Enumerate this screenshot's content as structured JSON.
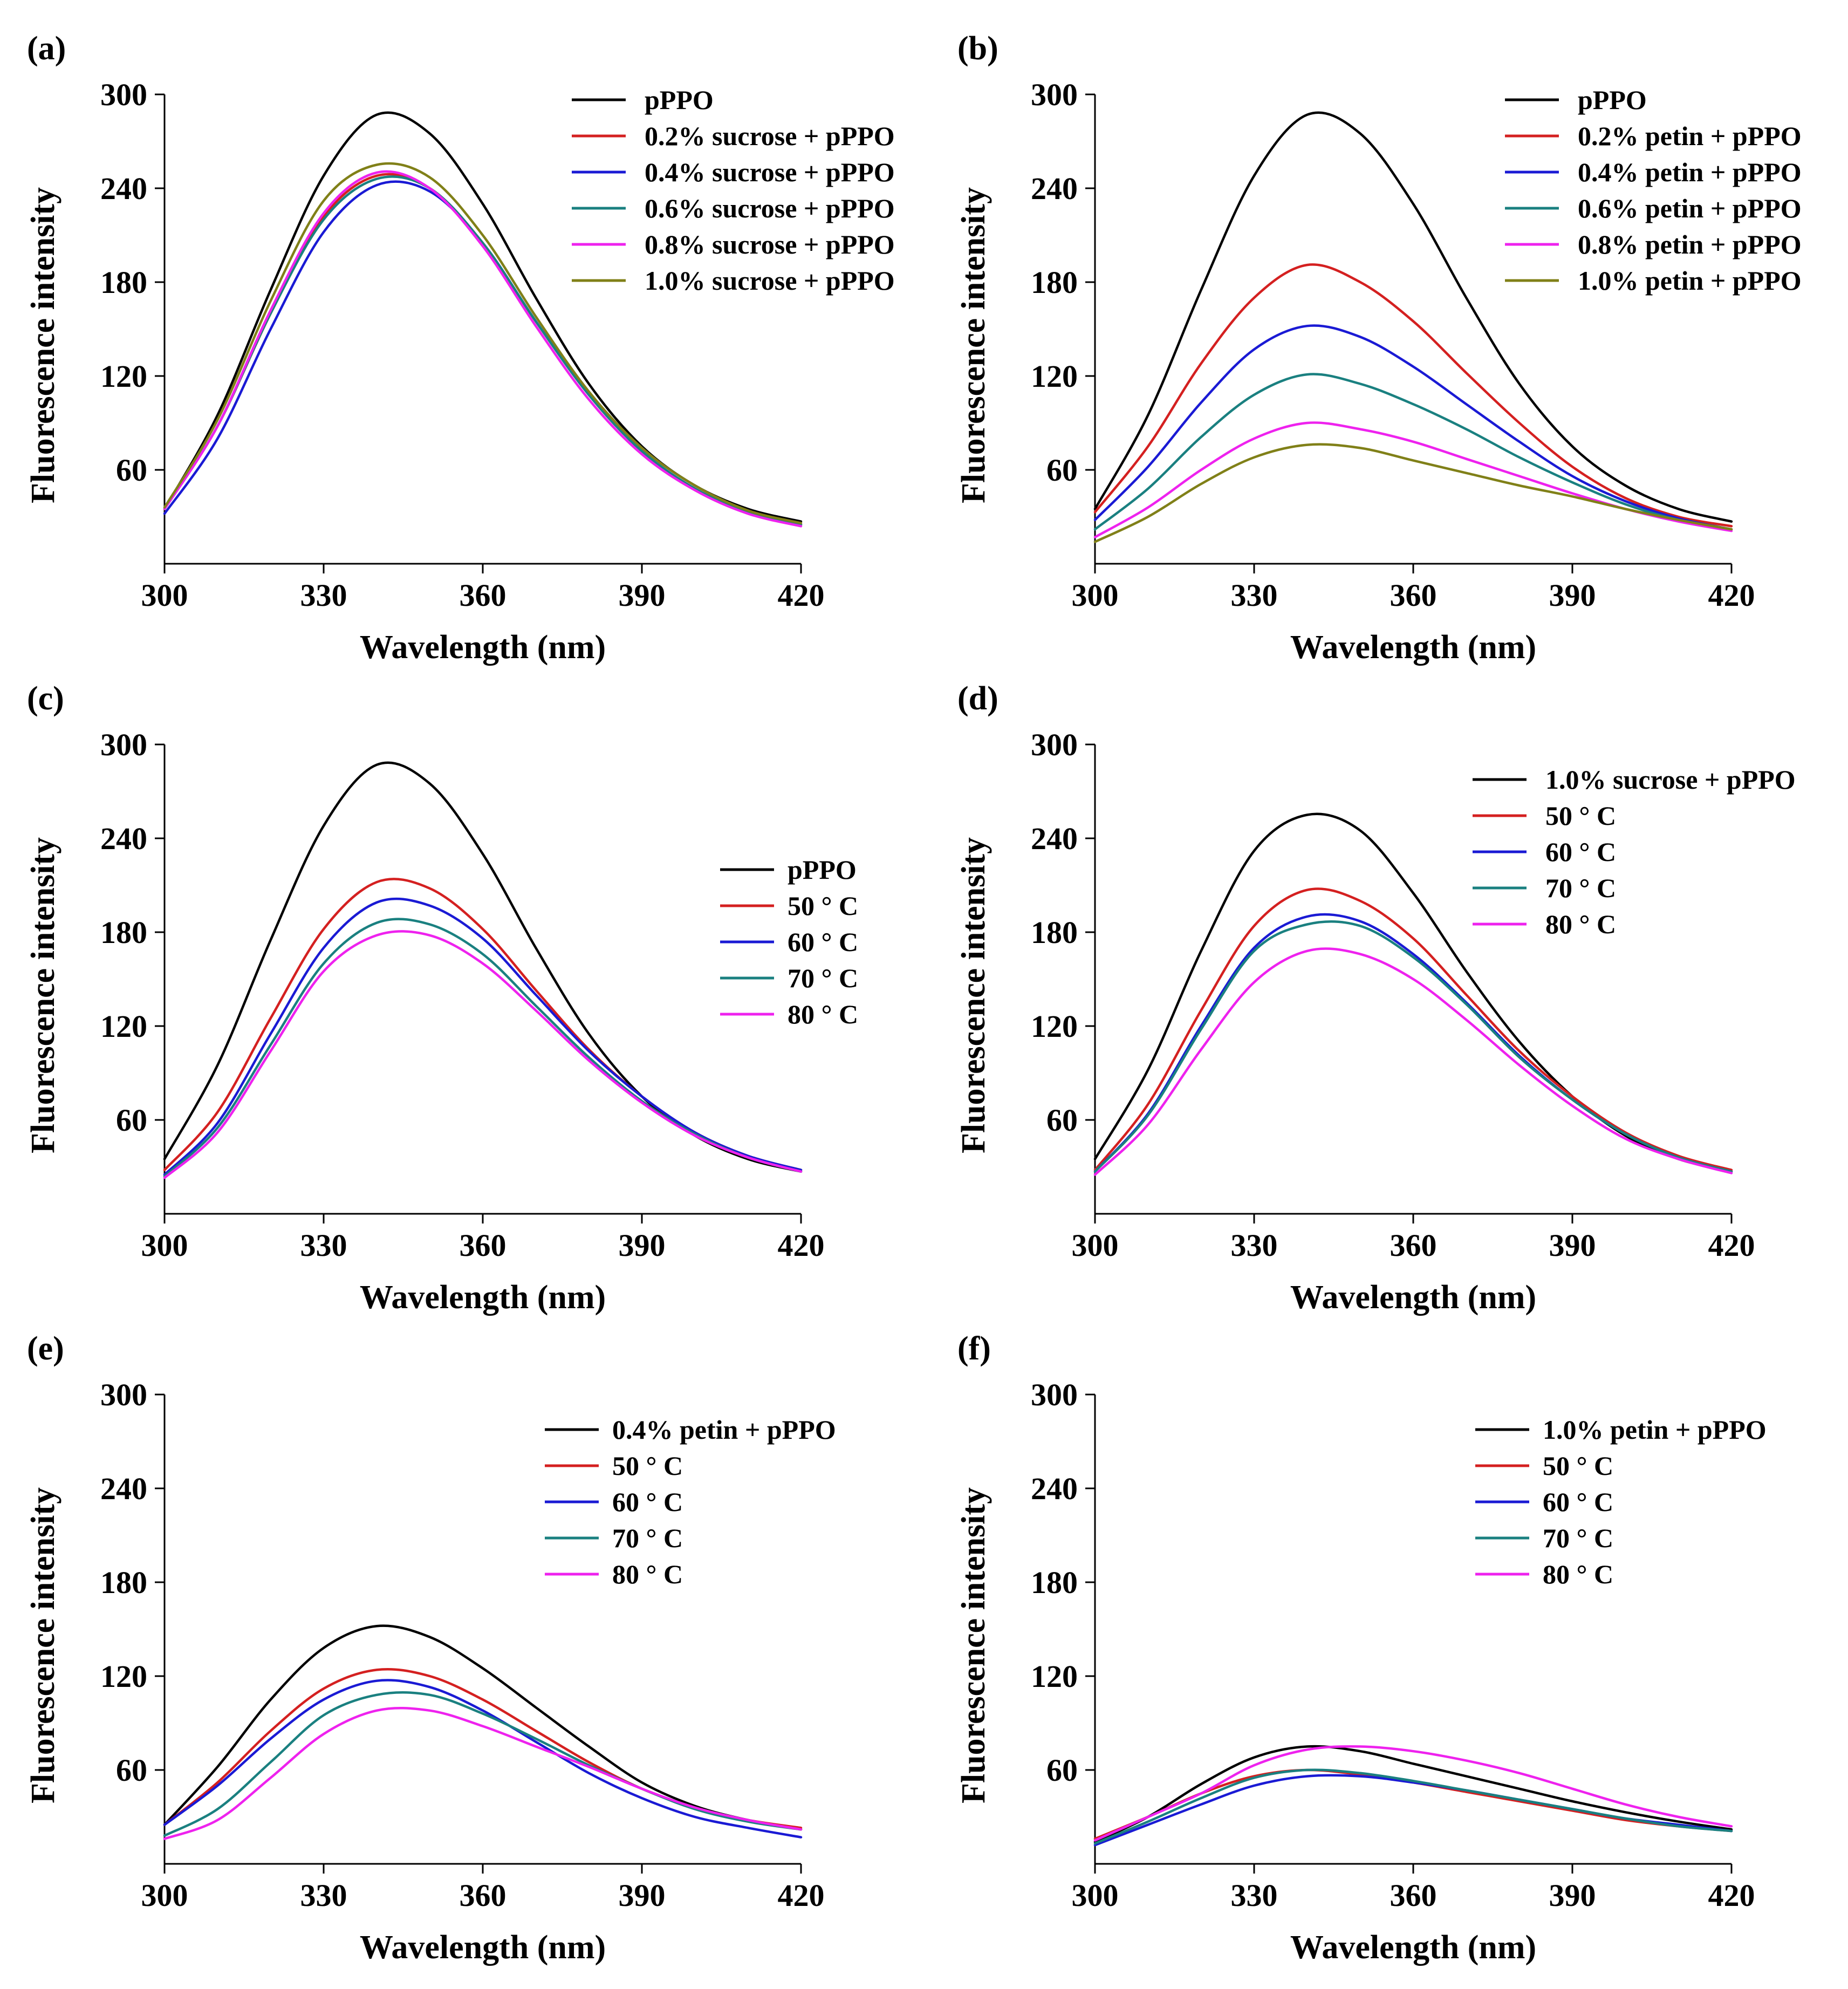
{
  "colors": {
    "black": "#000000",
    "red": "#d42020",
    "blue": "#1a1ad4",
    "teal": "#1a8080",
    "magenta": "#ee22ee",
    "olive": "#808018"
  },
  "chart_data": [
    {
      "panel": "(a)",
      "type": "line",
      "xlabel": "Wavelength (nm)",
      "ylabel": "Fluorescence intensity",
      "xlim": [
        300,
        420
      ],
      "ylim": [
        0,
        300
      ],
      "xticks": [
        "300",
        "330",
        "360",
        "390",
        "420"
      ],
      "yticks": [
        "60",
        "120",
        "180",
        "240",
        "300"
      ],
      "legend_position": "top-right",
      "x": [
        300,
        310,
        320,
        330,
        340,
        350,
        360,
        370,
        380,
        390,
        400,
        410,
        420
      ],
      "series": [
        {
          "name": "pPPO",
          "color": "black",
          "values": [
            35,
            95,
            175,
            248,
            287,
            275,
            230,
            170,
            115,
            75,
            50,
            35,
            27
          ]
        },
        {
          "name": "0.2% sucrose + pPPO",
          "color": "red",
          "values": [
            35,
            88,
            160,
            222,
            248,
            240,
            205,
            155,
            108,
            72,
            48,
            33,
            25
          ]
        },
        {
          "name": "0.4% sucrose + pPPO",
          "color": "blue",
          "values": [
            32,
            80,
            150,
            212,
            242,
            238,
            205,
            155,
            108,
            72,
            48,
            33,
            25
          ]
        },
        {
          "name": "0.6% sucrose + pPPO",
          "color": "teal",
          "values": [
            35,
            88,
            160,
            220,
            246,
            240,
            205,
            155,
            108,
            72,
            48,
            33,
            25
          ]
        },
        {
          "name": "0.8% sucrose + pPPO",
          "color": "magenta",
          "values": [
            35,
            88,
            162,
            224,
            250,
            240,
            203,
            152,
            105,
            70,
            47,
            32,
            24
          ]
        },
        {
          "name": "1.0% sucrose + pPPO",
          "color": "olive",
          "values": [
            36,
            92,
            168,
            232,
            255,
            247,
            210,
            158,
            110,
            74,
            50,
            34,
            26
          ]
        }
      ]
    },
    {
      "panel": "(b)",
      "type": "line",
      "xlabel": "Wavelength (nm)",
      "ylabel": "Fluorescence intensity",
      "xlim": [
        300,
        420
      ],
      "ylim": [
        0,
        300
      ],
      "xticks": [
        "300",
        "330",
        "360",
        "390",
        "420"
      ],
      "yticks": [
        "60",
        "120",
        "180",
        "240",
        "300"
      ],
      "legend_position": "top-right",
      "x": [
        300,
        310,
        320,
        330,
        340,
        350,
        360,
        370,
        380,
        390,
        400,
        410,
        420
      ],
      "series": [
        {
          "name": "pPPO",
          "color": "black",
          "values": [
            35,
            95,
            175,
            248,
            287,
            275,
            230,
            170,
            115,
            75,
            50,
            35,
            27
          ]
        },
        {
          "name": "0.2% petin + pPPO",
          "color": "red",
          "values": [
            33,
            75,
            128,
            170,
            191,
            180,
            155,
            122,
            90,
            62,
            42,
            30,
            24
          ]
        },
        {
          "name": "0.4% petin + pPPO",
          "color": "blue",
          "values": [
            28,
            62,
            103,
            137,
            152,
            145,
            126,
            102,
            78,
            56,
            40,
            29,
            22
          ]
        },
        {
          "name": "0.6% petin + pPPO",
          "color": "teal",
          "values": [
            22,
            48,
            81,
            108,
            121,
            115,
            102,
            86,
            68,
            52,
            38,
            28,
            22
          ]
        },
        {
          "name": "0.8% petin + pPPO",
          "color": "magenta",
          "values": [
            17,
            36,
            60,
            80,
            90,
            86,
            78,
            67,
            56,
            45,
            35,
            27,
            21
          ]
        },
        {
          "name": "1.0% petin + pPPO",
          "color": "olive",
          "values": [
            14,
            30,
            51,
            68,
            76,
            74,
            66,
            58,
            50,
            43,
            35,
            28,
            22
          ]
        }
      ]
    },
    {
      "panel": "(c)",
      "type": "line",
      "xlabel": "Wavelength (nm)",
      "ylabel": "Fluorescence intensity",
      "xlim": [
        300,
        420
      ],
      "ylim": [
        0,
        300
      ],
      "xticks": [
        "300",
        "330",
        "360",
        "390",
        "420"
      ],
      "yticks": [
        "60",
        "120",
        "180",
        "240",
        "300"
      ],
      "legend_position": "center-right",
      "x": [
        300,
        310,
        320,
        330,
        340,
        350,
        360,
        370,
        380,
        390,
        400,
        410,
        420
      ],
      "series": [
        {
          "name": "pPPO",
          "color": "black",
          "values": [
            35,
            95,
            175,
            248,
            287,
            275,
            230,
            170,
            115,
            75,
            50,
            35,
            27
          ]
        },
        {
          "name": "50 ° C",
          "color": "red",
          "values": [
            28,
            65,
            125,
            182,
            212,
            208,
            182,
            143,
            105,
            75,
            52,
            37,
            28
          ]
        },
        {
          "name": "60 ° C",
          "color": "blue",
          "values": [
            25,
            58,
            115,
            170,
            199,
            197,
            176,
            140,
            104,
            75,
            52,
            37,
            28
          ]
        },
        {
          "name": "70 ° C",
          "color": "teal",
          "values": [
            24,
            55,
            108,
            160,
            186,
            185,
            166,
            133,
            100,
            72,
            51,
            36,
            27
          ]
        },
        {
          "name": "80 ° C",
          "color": "magenta",
          "values": [
            23,
            52,
            104,
            155,
            178,
            178,
            160,
            130,
            98,
            71,
            50,
            36,
            27
          ]
        }
      ]
    },
    {
      "panel": "(d)",
      "type": "line",
      "xlabel": "Wavelength (nm)",
      "ylabel": "Fluorescence intensity",
      "xlim": [
        300,
        420
      ],
      "ylim": [
        0,
        300
      ],
      "xticks": [
        "300",
        "330",
        "360",
        "390",
        "420"
      ],
      "yticks": [
        "60",
        "120",
        "180",
        "240",
        "300"
      ],
      "legend_position": "top-right",
      "x": [
        300,
        310,
        320,
        330,
        340,
        350,
        360,
        370,
        380,
        390,
        400,
        410,
        420
      ],
      "series": [
        {
          "name": "1.0% sucrose + pPPO",
          "color": "black",
          "values": [
            35,
            92,
            168,
            232,
            255,
            245,
            205,
            155,
            110,
            75,
            50,
            35,
            27
          ]
        },
        {
          "name": "50 ° C",
          "color": "red",
          "values": [
            28,
            70,
            130,
            184,
            207,
            200,
            176,
            140,
            104,
            75,
            52,
            37,
            28
          ]
        },
        {
          "name": "60 ° C",
          "color": "blue",
          "values": [
            27,
            64,
            120,
            170,
            190,
            187,
            166,
            135,
            101,
            73,
            51,
            36,
            27
          ]
        },
        {
          "name": "70 ° C",
          "color": "teal",
          "values": [
            27,
            63,
            118,
            168,
            185,
            184,
            164,
            134,
            100,
            73,
            51,
            36,
            27
          ]
        },
        {
          "name": "80 ° C",
          "color": "magenta",
          "values": [
            25,
            57,
            105,
            148,
            168,
            166,
            150,
            124,
            95,
            69,
            48,
            35,
            26
          ]
        }
      ]
    },
    {
      "panel": "(e)",
      "type": "line",
      "xlabel": "Wavelength (nm)",
      "ylabel": "Fluorescence intensity",
      "xlim": [
        300,
        420
      ],
      "ylim": [
        0,
        300
      ],
      "xticks": [
        "300",
        "330",
        "360",
        "390",
        "420"
      ],
      "yticks": [
        "60",
        "120",
        "180",
        "240",
        "300"
      ],
      "legend_position": "top-right",
      "x": [
        300,
        310,
        320,
        330,
        340,
        350,
        360,
        370,
        380,
        390,
        400,
        410,
        420
      ],
      "series": [
        {
          "name": "0.4% petin + pPPO",
          "color": "black",
          "values": [
            25,
            62,
            105,
            138,
            152,
            145,
            125,
            100,
            75,
            52,
            37,
            28,
            22
          ]
        },
        {
          "name": "50 ° C",
          "color": "red",
          "values": [
            25,
            52,
            85,
            112,
            124,
            120,
            105,
            85,
            65,
            48,
            36,
            28,
            23
          ]
        },
        {
          "name": "60 ° C",
          "color": "blue",
          "values": [
            25,
            50,
            80,
            105,
            117,
            113,
            98,
            78,
            58,
            42,
            30,
            23,
            17
          ]
        },
        {
          "name": "70 ° C",
          "color": "teal",
          "values": [
            18,
            35,
            65,
            95,
            108,
            108,
            96,
            80,
            63,
            48,
            35,
            27,
            22
          ]
        },
        {
          "name": "80 ° C",
          "color": "magenta",
          "values": [
            16,
            28,
            55,
            83,
            98,
            98,
            88,
            75,
            62,
            48,
            36,
            28,
            22
          ]
        }
      ]
    },
    {
      "panel": "(f)",
      "type": "line",
      "xlabel": "Wavelength (nm)",
      "ylabel": "Fluorescence intensity",
      "xlim": [
        300,
        420
      ],
      "ylim": [
        0,
        300
      ],
      "xticks": [
        "300",
        "330",
        "360",
        "390",
        "420"
      ],
      "yticks": [
        "60",
        "120",
        "180",
        "240",
        "300"
      ],
      "legend_position": "top-right",
      "x": [
        300,
        310,
        320,
        330,
        340,
        350,
        360,
        370,
        380,
        390,
        400,
        410,
        420
      ],
      "series": [
        {
          "name": "1.0% petin + pPPO",
          "color": "black",
          "values": [
            14,
            30,
            51,
            68,
            75,
            72,
            64,
            56,
            48,
            40,
            33,
            27,
            22
          ]
        },
        {
          "name": "50 ° C",
          "color": "red",
          "values": [
            16,
            30,
            45,
            56,
            60,
            57,
            52,
            46,
            40,
            34,
            28,
            24,
            21
          ]
        },
        {
          "name": "60 ° C",
          "color": "blue",
          "values": [
            12,
            25,
            38,
            50,
            56,
            56,
            52,
            47,
            41,
            35,
            29,
            25,
            21
          ]
        },
        {
          "name": "70 ° C",
          "color": "teal",
          "values": [
            13,
            27,
            42,
            55,
            60,
            58,
            53,
            47,
            41,
            35,
            29,
            24,
            21
          ]
        },
        {
          "name": "80 ° C",
          "color": "magenta",
          "values": [
            15,
            30,
            45,
            63,
            73,
            75,
            72,
            66,
            58,
            48,
            38,
            30,
            24
          ]
        }
      ]
    }
  ]
}
